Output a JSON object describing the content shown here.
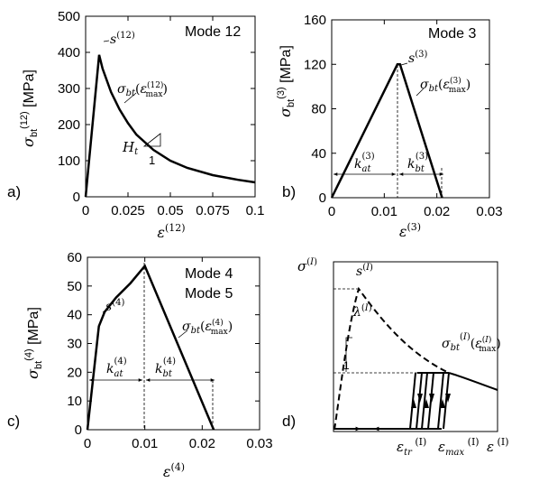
{
  "chart_data": [
    {
      "panel": "a)",
      "type": "line",
      "mode_label": "Mode 12",
      "ylabel": "σbt(12) [MPa]",
      "xlabel": "ε(12)",
      "xlim": [
        0,
        0.1
      ],
      "ylim": [
        0,
        500
      ],
      "xticks": [
        "0",
        "0.025",
        "0.05",
        "0.075",
        "0.1"
      ],
      "yticks": [
        "0",
        "100",
        "200",
        "300",
        "400",
        "500"
      ],
      "series": [
        {
          "x": [
            0,
            0.008,
            0.01,
            0.015,
            0.02,
            0.025,
            0.03,
            0.04,
            0.05,
            0.06,
            0.075,
            0.09,
            0.1
          ],
          "y": [
            0,
            393,
            355,
            290,
            242,
            204,
            172,
            130,
            100,
            80,
            60,
            47,
            40
          ]
        }
      ],
      "annotations": [
        "s(12)",
        "σbt(εmax(12))",
        "Ht",
        "1"
      ]
    },
    {
      "panel": "b)",
      "type": "line",
      "mode_label": "Mode 3",
      "ylabel": "σbt(3) [MPa]",
      "xlabel": "ε(3)",
      "xlim": [
        0,
        0.03
      ],
      "ylim": [
        0,
        160
      ],
      "xticks": [
        "0",
        "0.01",
        "0.02",
        "0.03"
      ],
      "yticks": [
        "0",
        "40",
        "80",
        "120",
        "160"
      ],
      "series": [
        {
          "x": [
            0,
            0.0125,
            0.013,
            0.021
          ],
          "y": [
            0,
            120,
            120,
            0
          ]
        }
      ],
      "annotations": [
        "s(3)",
        "σbt(εmax(3))",
        "kat(3)",
        "kbt(3)"
      ]
    },
    {
      "panel": "c)",
      "type": "line",
      "mode_label": "Mode 4\nMode 5",
      "ylabel": "σbt(4) [MPa]",
      "xlabel": "ε(4)",
      "xlim": [
        0,
        0.03
      ],
      "ylim": [
        0,
        60
      ],
      "xticks": [
        "0",
        "0.01",
        "0.02",
        "0.03"
      ],
      "yticks": [
        "0",
        "10",
        "20",
        "30",
        "40",
        "50",
        "60"
      ],
      "series": [
        {
          "x": [
            0,
            0.002,
            0.003,
            0.005,
            0.0075,
            0.01,
            0.022
          ],
          "y": [
            0,
            36,
            41,
            46,
            51,
            57,
            0
          ]
        }
      ],
      "annotations": [
        "s(4)",
        "σbt(εmax(4))",
        "kat(4)",
        "kbt(4)"
      ]
    },
    {
      "panel": "d)",
      "type": "line",
      "ylabel": "σ(I)",
      "annotations": [
        "s(I)",
        "λ(I)",
        "1",
        "σbt(I)(εmax(I))",
        "εtr(I)",
        "εmax(I)",
        "ε(I)"
      ]
    }
  ]
}
